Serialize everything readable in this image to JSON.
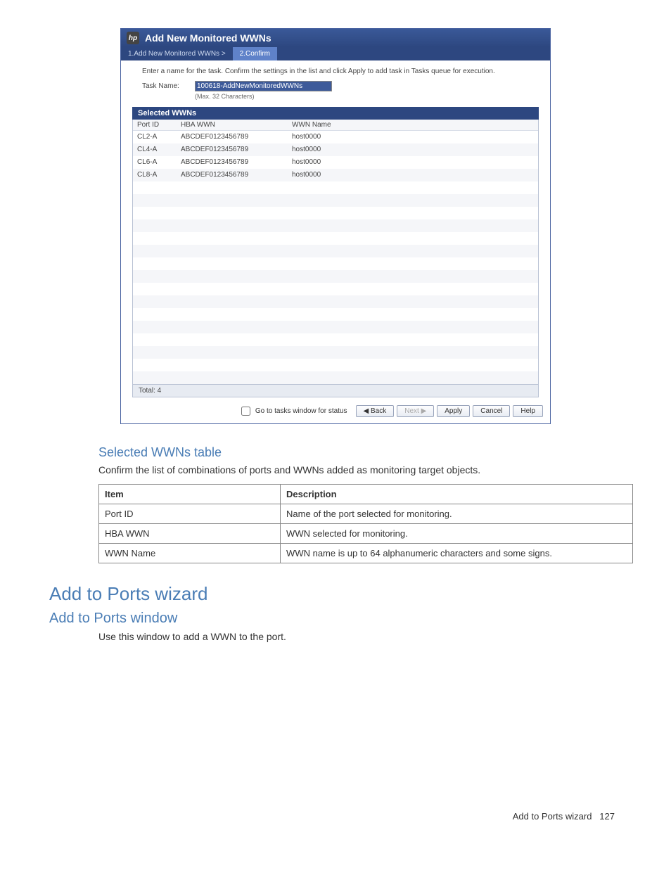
{
  "dialog": {
    "title": "Add New Monitored WWNs",
    "breadcrumb": {
      "step1": "1.Add New Monitored WWNs  >",
      "step2": "2.Confirm"
    },
    "instructions": "Enter a name for the task. Confirm the settings in the list and click Apply to add task in Tasks queue for execution.",
    "task_label": "Task Name:",
    "task_value": "100618-AddNewMonitoredWWNs",
    "task_note": "(Max. 32 Characters)",
    "selected_header": "Selected WWNs",
    "columns": {
      "c0": "Port ID",
      "c1": "HBA WWN",
      "c2": "WWN Name"
    },
    "rows": [
      {
        "c0": "CL2-A",
        "c1": "ABCDEF0123456789",
        "c2": "host0000"
      },
      {
        "c0": "CL4-A",
        "c1": "ABCDEF0123456789",
        "c2": "host0000"
      },
      {
        "c0": "CL6-A",
        "c1": "ABCDEF0123456789",
        "c2": "host0000"
      },
      {
        "c0": "CL8-A",
        "c1": "ABCDEF0123456789",
        "c2": "host0000"
      }
    ],
    "empty_row_count": 16,
    "total_label": "Total:  4",
    "checkbox_label": "Go to tasks window for status",
    "buttons": {
      "back": "◀ Back",
      "next": "Next ▶",
      "apply": "Apply",
      "cancel": "Cancel",
      "help": "Help"
    }
  },
  "doc": {
    "subhead1": "Selected WWNs table",
    "body1": "Confirm the list of combinations of ports and WWNs added as monitoring target objects.",
    "table": {
      "h0": "Item",
      "h1": "Description",
      "rows": [
        {
          "c0": "Port ID",
          "c1": "Name of the port selected for monitoring."
        },
        {
          "c0": "HBA WWN",
          "c1": "WWN selected for monitoring."
        },
        {
          "c0": "WWN Name",
          "c1": "WWN name is up to 64 alphanumeric characters and some signs."
        }
      ]
    },
    "h1": "Add to Ports wizard",
    "h2": "Add to Ports window",
    "body2": "Use this window to add a WWN to the port.",
    "footer_label": "Add to Ports wizard",
    "footer_page": "127"
  }
}
